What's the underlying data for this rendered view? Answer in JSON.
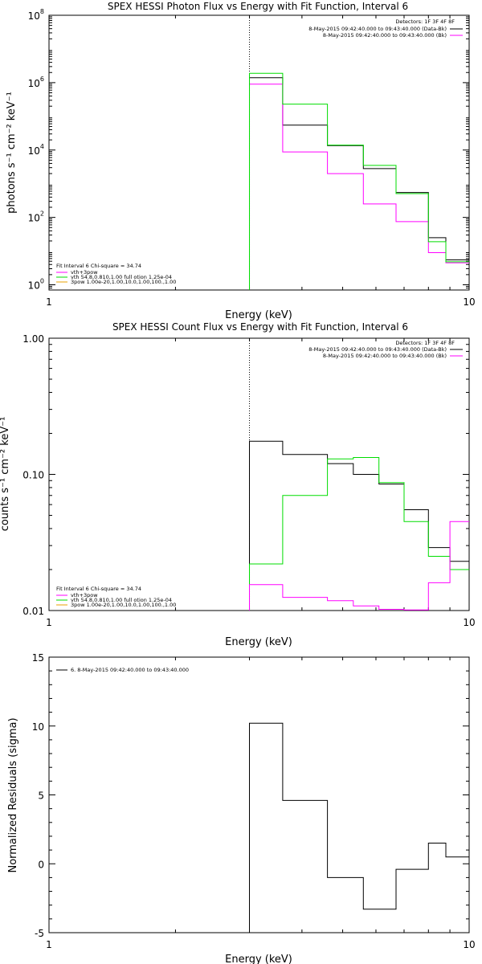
{
  "colors": {
    "data": "#000000",
    "model": "#ff00ff",
    "fit": "#00dd00",
    "pileup": "#e8a000"
  },
  "chart_data": [
    {
      "type": "line",
      "title": "SPEX HESSI Photon Flux vs Energy with Fit Function, Interval 6",
      "xlabel": "Energy (keV)",
      "ylabel": "photons s⁻¹ cm⁻² keV⁻¹",
      "x_scale": "log",
      "y_scale": "log",
      "xlim": [
        1,
        10
      ],
      "ylim": [
        0.7,
        100000000
      ],
      "x_ticks": [
        {
          "value": 1,
          "label": "1"
        },
        {
          "value": 10,
          "label": "10"
        }
      ],
      "y_ticks": [
        {
          "value": 1,
          "base": "10",
          "exp": "0"
        },
        {
          "value": 100,
          "base": "10",
          "exp": "2"
        },
        {
          "value": 10000,
          "base": "10",
          "exp": "4"
        },
        {
          "value": 1000000,
          "base": "10",
          "exp": "6"
        },
        {
          "value": 100000000,
          "base": "10",
          "exp": "8"
        }
      ],
      "vline_x": 3.0,
      "bin_edges": [
        3.0,
        3.6,
        4.6,
        5.6,
        6.7,
        8.0,
        8.8,
        10.0
      ],
      "series": [
        {
          "color": "#000000",
          "values": [
            1400000,
            55000,
            13500,
            2800,
            550,
            25,
            5.5
          ]
        },
        {
          "color": "#ff00ff",
          "values": [
            900000,
            8800,
            2000,
            250,
            75,
            9,
            4.5
          ]
        },
        {
          "color": "#00dd00",
          "values": [
            1900000,
            230000,
            14000,
            3500,
            510,
            19,
            4.8
          ]
        }
      ],
      "legend_top": {
        "header": "Detectors: 1F 3F 4F 8F",
        "entries": [
          {
            "text": "8-May-2015 09:42:40.000 to 09:43:40.000 (Data-Bk)",
            "color": "#000000"
          },
          {
            "text": "8-May-2015 09:42:40.000 to 09:43:40.000 (Bk)",
            "color": "#ff00ff"
          }
        ]
      },
      "legend_bottom": {
        "header": "Fit Interval 6   Chi-square = 34.74",
        "entries": [
          {
            "text": "vth+3pow",
            "color": "#ff00ff"
          },
          {
            "text": "vth 54.8,0.810,1.00  full otion 1.25e-04",
            "color": "#00dd00"
          },
          {
            "text": "3pow 1.00e-20,1.00,10.0,1.00,100.,1.00",
            "color": "#e8a000"
          }
        ]
      }
    },
    {
      "type": "line",
      "title": "SPEX HESSI Count Flux vs Energy with Fit Function, Interval 6",
      "xlabel": "Energy (keV)",
      "ylabel": "counts s⁻¹ cm⁻² keV⁻¹",
      "x_scale": "log",
      "y_scale": "log",
      "xlim": [
        1,
        10
      ],
      "ylim": [
        0.01,
        1.0
      ],
      "x_ticks": [
        {
          "value": 1,
          "label": "1"
        },
        {
          "value": 10,
          "label": "10"
        }
      ],
      "y_ticks": [
        {
          "value": 0.01,
          "label": "0.01"
        },
        {
          "value": 0.1,
          "label": "0.10"
        },
        {
          "value": 1.0,
          "label": "1.00"
        }
      ],
      "vline_x": 3.0,
      "bin_edges": [
        3.0,
        3.6,
        4.6,
        5.3,
        6.1,
        7.0,
        8.0,
        9.0,
        10.0
      ],
      "series": [
        {
          "color": "#000000",
          "values": [
            0.175,
            0.14,
            0.12,
            0.1,
            0.085,
            0.055,
            0.029,
            0.023
          ]
        },
        {
          "color": "#00dd00",
          "values": [
            0.022,
            0.07,
            0.13,
            0.133,
            0.087,
            0.045,
            0.025,
            0.02
          ]
        },
        {
          "color": "#ff00ff",
          "values": [
            0.0155,
            0.0125,
            0.0118,
            0.0108,
            0.0102,
            0.0101,
            0.016,
            0.045
          ]
        }
      ],
      "legend_top": {
        "header": "Detectors: 1F 3F 4F 8F",
        "entries": [
          {
            "text": "8-May-2015 09:42:40.000 to 09:43:40.000 (Data-Bk)",
            "color": "#000000"
          },
          {
            "text": "8-May-2015 09:42:40.000 to 09:43:40.000 (Bk)",
            "color": "#ff00ff"
          }
        ]
      },
      "legend_bottom": {
        "header": "Fit Interval 6   Chi-square = 34.74",
        "entries": [
          {
            "text": "vth+3pow",
            "color": "#ff00ff"
          },
          {
            "text": "vth 54.8,0.810,1.00  full otion 1.25e-04",
            "color": "#00dd00"
          },
          {
            "text": "3pow 1.00e-20,1.00,10.0,1.00,100.,1.00",
            "color": "#e8a000"
          }
        ]
      }
    },
    {
      "type": "line",
      "title": "",
      "xlabel": "Energy (keV)",
      "ylabel": "Normalized Residuals (sigma)",
      "x_scale": "log",
      "y_scale": "linear",
      "xlim": [
        1,
        10
      ],
      "ylim": [
        -5,
        15
      ],
      "x_ticks": [
        {
          "value": 1,
          "label": "1"
        },
        {
          "value": 10,
          "label": "10"
        }
      ],
      "y_ticks": [
        {
          "value": -5,
          "label": "-5"
        },
        {
          "value": 0,
          "label": "0"
        },
        {
          "value": 5,
          "label": "5"
        },
        {
          "value": 10,
          "label": "10"
        },
        {
          "value": 15,
          "label": "15"
        }
      ],
      "bin_edges": [
        3.0,
        3.6,
        4.6,
        5.6,
        6.7,
        8.0,
        8.8,
        10.0
      ],
      "series": [
        {
          "color": "#000000",
          "values": [
            10.2,
            4.6,
            -1.0,
            -3.3,
            -0.4,
            1.5,
            0.5
          ]
        }
      ],
      "legend_top": {
        "header": "",
        "entries": [
          {
            "text": "6. 8-May-2015 09:42:40.000 to 09:43:40.000",
            "color": "#000000"
          }
        ]
      }
    }
  ]
}
